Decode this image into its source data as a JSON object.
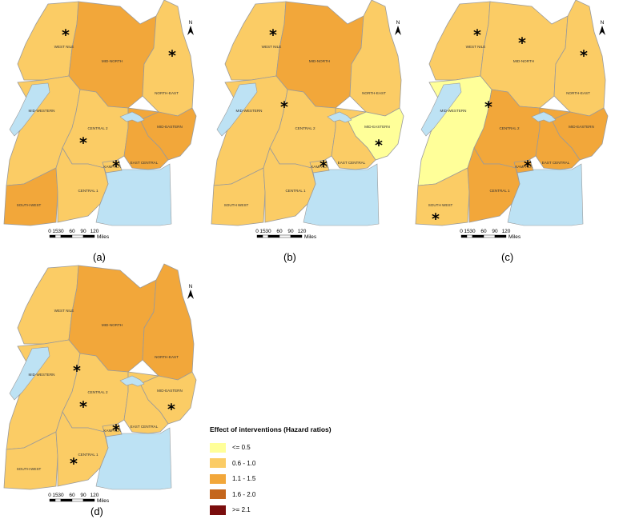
{
  "colors": {
    "c1": "#ffff99",
    "c2": "#fbcc65",
    "c3": "#f2a73a",
    "c4": "#c4661c",
    "c5": "#7a0d0d",
    "lake": "#bde2f4",
    "border": "#9a9a9a"
  },
  "region_labels": {
    "west_nile": "WEST NILE",
    "mid_north": "MID-NORTH",
    "north_east": "NORTH-EAST",
    "mid_western": "MID-WESTERN",
    "central_2": "CENTRAL 2",
    "mid_eastern": "MID-EASTERN",
    "kampala": "KAMPALA",
    "east_central": "EAST CENTRAL",
    "south_west": "SOUTH WEST",
    "central_1": "CENTRAL 1"
  },
  "north_arrow": "N",
  "scale_bar": {
    "ticks": [
      "0",
      "15",
      "30",
      "60",
      "90",
      "120"
    ],
    "unit": "Miles"
  },
  "maps": [
    {
      "caption": "(a)",
      "regions": {
        "west_nile": "c2",
        "mid_north": "c3",
        "north_east": "c2",
        "mid_western": "c2",
        "central_2": "c2",
        "mid_eastern": "c3",
        "kampala": "c2",
        "east_central": "c3",
        "south_west": "c3",
        "central_1": "c2"
      },
      "stars": [
        "west_nile",
        "north_east",
        "central_2",
        "kampala"
      ]
    },
    {
      "caption": "(b)",
      "regions": {
        "west_nile": "c2",
        "mid_north": "c3",
        "north_east": "c2",
        "mid_western": "c2",
        "central_2": "c2",
        "mid_eastern": "c1",
        "kampala": "c2",
        "east_central": "c2",
        "south_west": "c2",
        "central_1": "c2"
      },
      "stars": [
        "west_nile",
        "mid_western",
        "mid_eastern",
        "kampala"
      ]
    },
    {
      "caption": "(c)",
      "regions": {
        "west_nile": "c2",
        "mid_north": "c2",
        "north_east": "c2",
        "mid_western": "c1",
        "central_2": "c3",
        "mid_eastern": "c3",
        "kampala": "c3",
        "east_central": "c3",
        "south_west": "c2",
        "central_1": "c3"
      },
      "stars": [
        "west_nile",
        "mid_north",
        "north_east",
        "mid_western",
        "kampala",
        "south_west"
      ]
    },
    {
      "caption": "(d)",
      "regions": {
        "west_nile": "c2",
        "mid_north": "c3",
        "north_east": "c3",
        "mid_western": "c2",
        "central_2": "c2",
        "mid_eastern": "c2",
        "kampala": "c2",
        "east_central": "c2",
        "south_west": "c2",
        "central_1": "c2"
      },
      "stars": [
        "mid_western",
        "central_2",
        "mid_eastern",
        "kampala",
        "central_1"
      ]
    }
  ],
  "legend": {
    "title": "Effect of interventions (Hazard ratios)",
    "items": [
      {
        "label": "<= 0.5",
        "color": "#ffff99"
      },
      {
        "label": "0.6 - 1.0",
        "color": "#fbcc65"
      },
      {
        "label": "1.1 - 1.5",
        "color": "#f2a73a"
      },
      {
        "label": "1.6 - 2.0",
        "color": "#c4661c"
      },
      {
        "label": ">= 2.1",
        "color": "#7a0d0d"
      }
    ]
  }
}
